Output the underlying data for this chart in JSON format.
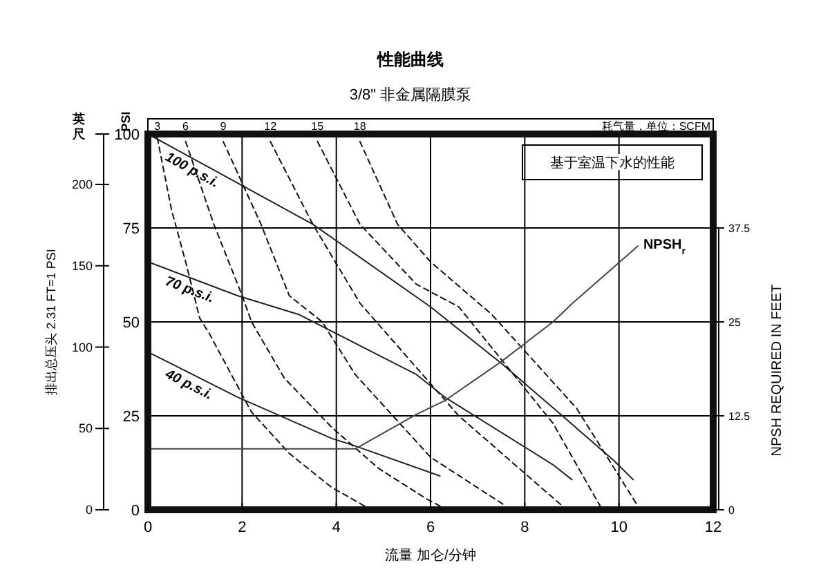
{
  "chart_data": {
    "type": "line",
    "title": "性能曲线",
    "subtitle": "3/8\" 非金属隔膜泵",
    "xlabel": "流量 加仑/分钟",
    "ylabel": "PSI",
    "y3label": "英尺",
    "x2label": "耗气量，单位：SCFM",
    "y2label": "NPSH REQUIRED IN FEET",
    "annotations": [
      "排出总压头 2.31 FT=1 PSI",
      "基于室温下水的性能"
    ],
    "xlim": [
      0,
      12
    ],
    "xticks": [
      0,
      2,
      4,
      6,
      8,
      10,
      12
    ],
    "ylim": [
      0,
      100
    ],
    "yticks": [
      0,
      25,
      50,
      75,
      100
    ],
    "y2lim": [
      0,
      50
    ],
    "y2ticks": [
      0,
      12.5,
      25,
      37.5
    ],
    "y3lim": [
      0,
      231
    ],
    "y3ticks": [
      0,
      50,
      100,
      150,
      200,
      {
        "value": 231,
        "label": null
      }
    ],
    "grid": true,
    "series": [
      {
        "name": "100 p.s.i.",
        "color": "#222222",
        "line_style": "solid",
        "x": [
          0,
          1.9,
          3.5,
          6.0,
          7.5,
          8.8,
          9.9,
          10.3
        ],
        "values": [
          100,
          87,
          76,
          54,
          39,
          25,
          13,
          8
        ]
      },
      {
        "name": "70 p.s.i.",
        "color": "#222222",
        "line_style": "solid",
        "x": [
          0,
          1.9,
          3.2,
          5.7,
          6.3,
          8.6,
          9.0
        ],
        "values": [
          66,
          57,
          52,
          36,
          30,
          12,
          8
        ]
      },
      {
        "name": "40 p.s.i.",
        "color": "#222222",
        "line_style": "solid",
        "x": [
          0,
          1.9,
          3.9,
          4.4,
          6.2
        ],
        "values": [
          42,
          30,
          19,
          17,
          9
        ]
      },
      {
        "name": "3",
        "color": "#111111",
        "line_style": "dashed",
        "x": [
          0.2,
          0.5,
          0.8,
          1.1,
          1.3,
          2.2,
          3.0,
          3.9,
          4.6
        ],
        "values": [
          99,
          80,
          66,
          51,
          47,
          26,
          15,
          6,
          1
        ]
      },
      {
        "name": "6",
        "color": "#111111",
        "line_style": "dashed",
        "x": [
          0.8,
          1.4,
          2.0,
          2.2,
          2.9,
          3.9,
          4.9,
          5.9,
          6.2
        ],
        "values": [
          98,
          76,
          57,
          50,
          35,
          22,
          11,
          3,
          1
        ]
      },
      {
        "name": "9",
        "color": "#111111",
        "line_style": "dashed",
        "x": [
          1.6,
          2.4,
          3.0,
          3.7,
          4.4,
          6.0,
          7.6
        ],
        "values": [
          98,
          76,
          57,
          50,
          36,
          14,
          1
        ]
      },
      {
        "name": "12",
        "color": "#111111",
        "line_style": "dashed",
        "x": [
          2.6,
          3.5,
          4.5,
          6.6,
          8.8
        ],
        "values": [
          98,
          76,
          55,
          25,
          1
        ]
      },
      {
        "name": "15",
        "color": "#111111",
        "line_style": "dashed",
        "x": [
          3.6,
          4.5,
          5.7,
          6.6,
          8.6,
          9.6
        ],
        "values": [
          98,
          76,
          60,
          54,
          23,
          1
        ]
      },
      {
        "name": "18",
        "color": "#111111",
        "line_style": "dashed",
        "x": [
          4.5,
          5.3,
          6.0,
          7.3,
          9.1,
          10.4
        ],
        "values": [
          98,
          76,
          66,
          52,
          27,
          1
        ]
      },
      {
        "name": "NPSH$_{r}$",
        "color": "#444444",
        "line_style": "solid",
        "axis": "y2",
        "x": [
          0,
          4.4,
          5.7,
          6.3,
          7.5,
          8.6,
          9.0,
          10.4
        ],
        "values": [
          8.1,
          8.1,
          12.7,
          14.5,
          19.7,
          25.0,
          27.4,
          35.1
        ]
      }
    ]
  }
}
